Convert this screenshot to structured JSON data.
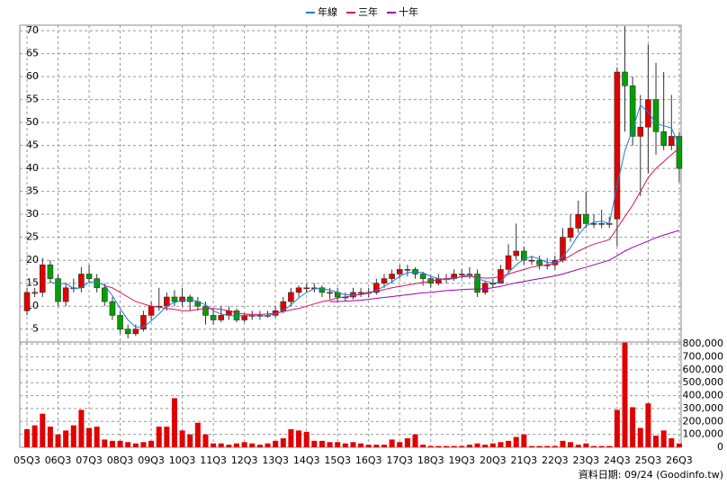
{
  "chart_data": [
    {
      "type": "candlestick",
      "open": [
        9,
        13,
        13,
        19,
        16,
        11,
        14,
        14,
        17,
        16,
        14,
        11,
        8,
        5,
        4,
        5,
        8,
        10,
        10,
        12,
        11,
        12,
        11,
        10,
        8,
        7,
        8,
        9,
        7,
        8,
        8,
        8,
        8,
        9,
        11,
        13,
        14,
        14,
        14,
        13,
        13,
        12,
        12,
        13,
        13,
        13,
        15,
        16,
        17,
        18,
        18,
        17,
        16,
        15,
        16,
        16,
        17,
        17,
        17,
        13,
        15,
        15,
        18,
        21,
        22,
        20,
        20,
        19,
        19,
        20,
        25,
        27,
        30,
        28,
        28,
        28,
        29,
        61,
        58,
        47,
        49,
        55,
        48,
        45,
        47
      ],
      "high": [
        14,
        14,
        20.5,
        20,
        17,
        15,
        16,
        18.5,
        19,
        17,
        15,
        12,
        9,
        6,
        6,
        9,
        11,
        14,
        13,
        13.5,
        14,
        12.5,
        12,
        11,
        9.5,
        10,
        10,
        9.5,
        8.5,
        9,
        9,
        9,
        10,
        12,
        14,
        14.5,
        15,
        15,
        14.5,
        14,
        14,
        13,
        14,
        14,
        14,
        16,
        17,
        18,
        19,
        19,
        18.5,
        17.5,
        16.5,
        17,
        17,
        18,
        18,
        18.5,
        18,
        15.5,
        16,
        19,
        23.5,
        28,
        23,
        21,
        21,
        20.5,
        21,
        27,
        30,
        33,
        35,
        30,
        31,
        29.5,
        62,
        71,
        60,
        56,
        67,
        63,
        61,
        56,
        48
      ],
      "low": [
        8,
        12,
        12,
        15,
        10,
        10,
        13,
        13,
        15,
        13,
        10,
        7,
        4,
        3,
        3.5,
        4.5,
        7,
        9,
        9,
        10,
        10,
        9,
        9,
        6,
        6,
        6.5,
        7,
        6.5,
        6.5,
        7,
        7,
        7.5,
        7.5,
        8.5,
        10,
        12,
        13,
        13,
        12,
        11.5,
        11,
        11,
        11.5,
        12,
        12,
        12.5,
        14,
        15,
        16,
        16.5,
        16,
        14.5,
        14,
        14.5,
        15,
        15.5,
        16,
        16,
        12,
        12.5,
        14,
        15,
        17,
        20,
        19,
        19,
        18,
        18,
        18,
        19.5,
        24,
        26,
        27,
        27,
        27,
        27,
        23,
        48,
        45,
        34,
        39,
        43,
        44,
        44,
        37
      ],
      "close": [
        13,
        13,
        19,
        16,
        11,
        14,
        14,
        17,
        16,
        14,
        11,
        8,
        5,
        4,
        5,
        8,
        10,
        10,
        12,
        11,
        12,
        11,
        10,
        8,
        7,
        8,
        9,
        7,
        8,
        8,
        8,
        8,
        9,
        11,
        13,
        14,
        14,
        14,
        13,
        13,
        12,
        12,
        13,
        13,
        13,
        15,
        16,
        17,
        18,
        18,
        17,
        16,
        15,
        16,
        16,
        17,
        17,
        17,
        13,
        15,
        15,
        18,
        21,
        22,
        20,
        20,
        19,
        19,
        20,
        25,
        27,
        30,
        28,
        28,
        28,
        28,
        61,
        58,
        47,
        49,
        55,
        48,
        45,
        47,
        40
      ],
      "up_color": "#e00000",
      "down_color": "#00a000",
      "series": [
        {
          "name": "年線",
          "color": "#1f7fd6",
          "values": [
            null,
            null,
            null,
            15.3,
            14.8,
            15,
            13.8,
            14,
            15.3,
            15.3,
            14.5,
            12.3,
            9.5,
            7,
            5.5,
            5.5,
            6.8,
            8.3,
            10,
            10.8,
            11.3,
            11.5,
            11,
            10.3,
            9,
            8.3,
            8,
            7.8,
            8,
            8,
            7.8,
            8,
            8.3,
            9,
            10.3,
            11.8,
            13,
            13.8,
            13.8,
            13.5,
            13,
            12.5,
            12.5,
            12.5,
            12.8,
            13.5,
            14.3,
            15.3,
            16.5,
            17.3,
            17.5,
            17.3,
            16.5,
            16,
            15.8,
            16,
            16.5,
            16.8,
            16,
            15.5,
            15,
            15.3,
            17.3,
            19,
            20.3,
            20.8,
            20.3,
            19.5,
            19.5,
            20.8,
            22.8,
            25.5,
            27.5,
            28.3,
            28.5,
            28,
            36.3,
            43.8,
            48.5,
            53.8,
            52.3,
            49.8,
            49.3,
            48.8,
            45
          ]
        },
        {
          "name": "三年",
          "color": "#e0105a",
          "values": [
            null,
            null,
            null,
            null,
            null,
            null,
            null,
            null,
            null,
            null,
            14.5,
            14,
            13,
            12,
            11,
            10.5,
            10,
            9.8,
            9.5,
            9.3,
            9,
            9,
            9.3,
            9.5,
            9.5,
            9.3,
            9,
            8.5,
            8.3,
            8.2,
            8.2,
            8.3,
            8.5,
            8.8,
            9.2,
            9.5,
            10,
            10.5,
            11,
            11.3,
            11.8,
            12,
            12.3,
            12.6,
            13,
            13.3,
            13.6,
            14,
            14.3,
            14.6,
            14.9,
            15.2,
            15.5,
            15.8,
            16,
            16.2,
            16.4,
            16.5,
            16.3,
            16.1,
            16.2,
            16.4,
            17,
            17.5,
            18,
            18.5,
            18.8,
            19,
            19.3,
            20,
            21,
            22,
            22.8,
            23.5,
            24,
            24.5,
            27,
            29.5,
            32,
            35,
            38,
            40,
            41.5,
            43,
            44.5
          ]
        },
        {
          "name": "十年",
          "color": "#9900bb",
          "values": [
            null,
            null,
            null,
            null,
            null,
            null,
            null,
            null,
            null,
            null,
            null,
            null,
            null,
            null,
            null,
            null,
            null,
            null,
            null,
            null,
            null,
            null,
            null,
            null,
            null,
            null,
            null,
            null,
            null,
            null,
            null,
            null,
            null,
            null,
            null,
            null,
            null,
            null,
            null,
            11,
            11,
            11.1,
            11.2,
            11.3,
            11.5,
            11.7,
            11.9,
            12.1,
            12.3,
            12.5,
            12.7,
            12.9,
            13,
            13.2,
            13.4,
            13.5,
            13.6,
            13.7,
            13.7,
            13.8,
            14,
            14.3,
            14.7,
            15.1,
            15.4,
            15.7,
            16,
            16.3,
            16.6,
            17,
            17.5,
            18,
            18.5,
            19,
            19.5,
            20,
            21,
            22,
            22.8,
            23.5,
            24.2,
            24.9,
            25.5,
            26,
            26.5
          ]
        }
      ],
      "ylim": [
        2.2,
        71.2
      ],
      "yticks": [
        5,
        10,
        15,
        20,
        25,
        30,
        35,
        40,
        45,
        50,
        55,
        60,
        65,
        70
      ],
      "grid": true,
      "legend": "top"
    },
    {
      "type": "bar",
      "categories": [
        "05Q3",
        null,
        null,
        null,
        "06Q3",
        null,
        null,
        null,
        "07Q3",
        null,
        null,
        null,
        "08Q3",
        null,
        null,
        null,
        "09Q3",
        null,
        null,
        null,
        "10Q3",
        null,
        null,
        null,
        "11Q3",
        null,
        null,
        null,
        "12Q3",
        null,
        null,
        null,
        "13Q3",
        null,
        null,
        null,
        "14Q3",
        null,
        null,
        null,
        "15Q3",
        null,
        null,
        null,
        "16Q3",
        null,
        null,
        null,
        "17Q3",
        null,
        null,
        null,
        "18Q3",
        null,
        null,
        null,
        "19Q3",
        null,
        null,
        null,
        "20Q3",
        null,
        null,
        null,
        "21Q3",
        null,
        null,
        null,
        "22Q3",
        null,
        null,
        null,
        "23Q3",
        null,
        null,
        null,
        "24Q3",
        null,
        null,
        null,
        "25Q3",
        null,
        null,
        null,
        "26Q3"
      ],
      "values": [
        140000,
        170000,
        260000,
        160000,
        100000,
        130000,
        170000,
        290000,
        150000,
        160000,
        60000,
        50000,
        50000,
        40000,
        30000,
        40000,
        50000,
        160000,
        160000,
        380000,
        130000,
        100000,
        190000,
        100000,
        30000,
        30000,
        20000,
        30000,
        40000,
        30000,
        20000,
        30000,
        50000,
        70000,
        140000,
        130000,
        120000,
        50000,
        50000,
        40000,
        40000,
        30000,
        40000,
        30000,
        20000,
        20000,
        20000,
        60000,
        40000,
        70000,
        100000,
        20000,
        10000,
        10000,
        10000,
        10000,
        10000,
        20000,
        30000,
        20000,
        30000,
        40000,
        50000,
        80000,
        100000,
        10000,
        10000,
        10000,
        10000,
        50000,
        40000,
        20000,
        30000,
        10000,
        10000,
        10000,
        290000,
        810000,
        310000,
        150000,
        340000,
        90000,
        130000,
        70000,
        30000
      ],
      "color": "#e00000",
      "ylim": [
        0,
        815000
      ],
      "yticks": [
        0,
        {
          "value": 100000,
          "label": "100,000"
        },
        {
          "value": 200000,
          "label": "200,000"
        },
        {
          "value": 300000,
          "label": "300,000"
        },
        {
          "value": 400000,
          "label": "400,000"
        },
        {
          "value": 500000,
          "label": "500,000"
        },
        {
          "value": 600000,
          "label": "600,000"
        },
        {
          "value": 700000,
          "label": "700,000"
        },
        {
          "value": 800000,
          "label": "800,000"
        }
      ],
      "grid": true
    }
  ],
  "footer": "資料日期: 09/24 (Goodinfo.tw)"
}
